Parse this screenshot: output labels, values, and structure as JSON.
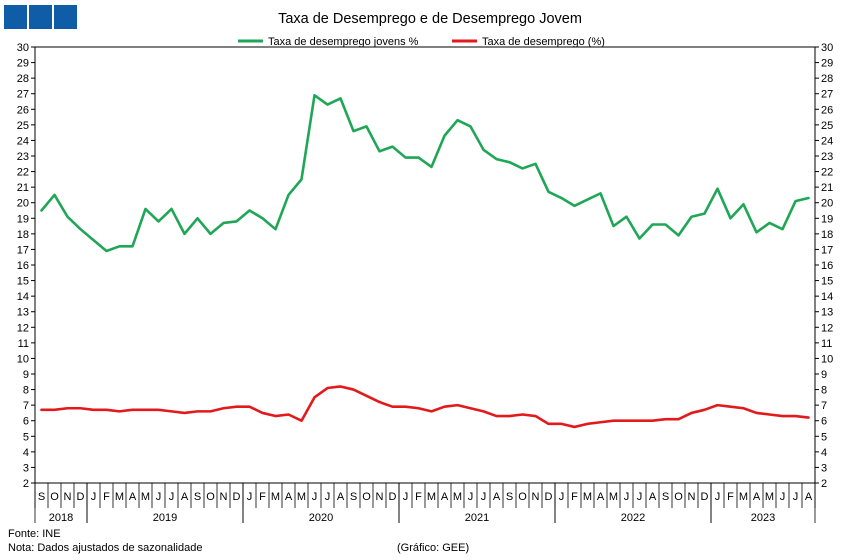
{
  "chart_data": {
    "type": "line",
    "title": "Taxa de Desemprego e de Desemprego Jovem",
    "ylim": [
      2,
      30
    ],
    "grid": false,
    "legend_position": "top-center",
    "y_ticks": [
      2,
      3,
      4,
      5,
      6,
      7,
      8,
      9,
      10,
      11,
      12,
      13,
      14,
      15,
      16,
      17,
      18,
      19,
      20,
      21,
      22,
      23,
      24,
      25,
      26,
      27,
      28,
      29,
      30
    ],
    "month_labels": [
      "S",
      "O",
      "N",
      "D",
      "J",
      "F",
      "M",
      "A",
      "M",
      "J",
      "J",
      "A",
      "S",
      "O",
      "N",
      "D",
      "J",
      "F",
      "M",
      "A",
      "M",
      "J",
      "J",
      "A",
      "S",
      "O",
      "N",
      "D",
      "J",
      "F",
      "M",
      "A",
      "M",
      "J",
      "J",
      "A",
      "S",
      "O",
      "N",
      "D",
      "J",
      "F",
      "M",
      "A",
      "M",
      "J",
      "J",
      "A",
      "S",
      "O",
      "N",
      "D",
      "J",
      "F",
      "M",
      "A",
      "M",
      "J",
      "J",
      "A"
    ],
    "years": [
      {
        "label": "2018",
        "start": 0,
        "end": 4
      },
      {
        "label": "2019",
        "start": 4,
        "end": 16
      },
      {
        "label": "2020",
        "start": 16,
        "end": 28
      },
      {
        "label": "2021",
        "start": 28,
        "end": 40
      },
      {
        "label": "2022",
        "start": 40,
        "end": 52
      },
      {
        "label": "2023",
        "start": 52,
        "end": 60
      }
    ],
    "series": [
      {
        "name": "Taxa de desemprego jovens %",
        "color": "#1fa656",
        "values": [
          19.5,
          20.5,
          19.1,
          18.3,
          17.6,
          16.9,
          17.2,
          17.2,
          19.6,
          18.8,
          19.6,
          18.0,
          19.0,
          18.0,
          18.7,
          18.8,
          19.5,
          19.0,
          18.3,
          20.5,
          21.5,
          26.9,
          26.3,
          26.7,
          24.6,
          24.9,
          23.3,
          23.6,
          22.9,
          22.9,
          22.3,
          24.3,
          25.3,
          24.9,
          23.4,
          22.8,
          22.6,
          22.2,
          22.5,
          20.7,
          20.3,
          19.8,
          20.2,
          20.6,
          18.5,
          19.1,
          17.7,
          18.6,
          18.6,
          17.9,
          19.1,
          19.3,
          20.9,
          19.0,
          19.9,
          18.1,
          18.7,
          18.3,
          20.1,
          20.3
        ]
      },
      {
        "name": "Taxa de desemprego (%)",
        "color": "#e31a1c",
        "values": [
          6.7,
          6.7,
          6.8,
          6.8,
          6.7,
          6.7,
          6.6,
          6.7,
          6.7,
          6.7,
          6.6,
          6.5,
          6.6,
          6.6,
          6.8,
          6.9,
          6.9,
          6.5,
          6.3,
          6.4,
          6.0,
          7.5,
          8.1,
          8.2,
          8.0,
          7.6,
          7.2,
          6.9,
          6.9,
          6.8,
          6.6,
          6.9,
          7.0,
          6.8,
          6.6,
          6.3,
          6.3,
          6.4,
          6.3,
          5.8,
          5.8,
          5.6,
          5.8,
          5.9,
          6.0,
          6.0,
          6.0,
          6.0,
          6.1,
          6.1,
          6.5,
          6.7,
          7.0,
          6.9,
          6.8,
          6.5,
          6.4,
          6.3,
          6.3,
          6.2
        ]
      }
    ]
  },
  "footer": {
    "source": "Fonte: INE",
    "note": "Nota: Dados ajustados de sazonalidade",
    "credit": "(Gráfico: GEE)"
  },
  "logo_icon": "three-blue-squares-logo"
}
